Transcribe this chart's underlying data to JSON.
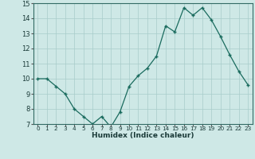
{
  "x": [
    0,
    1,
    2,
    3,
    4,
    5,
    6,
    7,
    8,
    9,
    10,
    11,
    12,
    13,
    14,
    15,
    16,
    17,
    18,
    19,
    20,
    21,
    22,
    23
  ],
  "y": [
    10.0,
    10.0,
    9.5,
    9.0,
    8.0,
    7.5,
    7.0,
    7.5,
    6.8,
    7.8,
    9.5,
    10.2,
    10.7,
    11.5,
    13.5,
    13.1,
    14.7,
    14.2,
    14.7,
    13.9,
    12.8,
    11.6,
    10.5,
    9.6
  ],
  "xlabel": "Humidex (Indice chaleur)",
  "ylim": [
    7,
    15
  ],
  "xlim": [
    -0.5,
    23.5
  ],
  "yticks": [
    7,
    8,
    9,
    10,
    11,
    12,
    13,
    14,
    15
  ],
  "xtick_labels": [
    "0",
    "1",
    "2",
    "3",
    "4",
    "5",
    "6",
    "7",
    "8",
    "9",
    "10",
    "11",
    "12",
    "13",
    "14",
    "15",
    "16",
    "17",
    "18",
    "19",
    "20",
    "21",
    "22",
    "23"
  ],
  "line_color": "#1a6b5e",
  "marker_color": "#1a6b5e",
  "bg_color": "#cee8e6",
  "grid_color": "#a8ccca",
  "xlabel_color": "#1a3a38"
}
